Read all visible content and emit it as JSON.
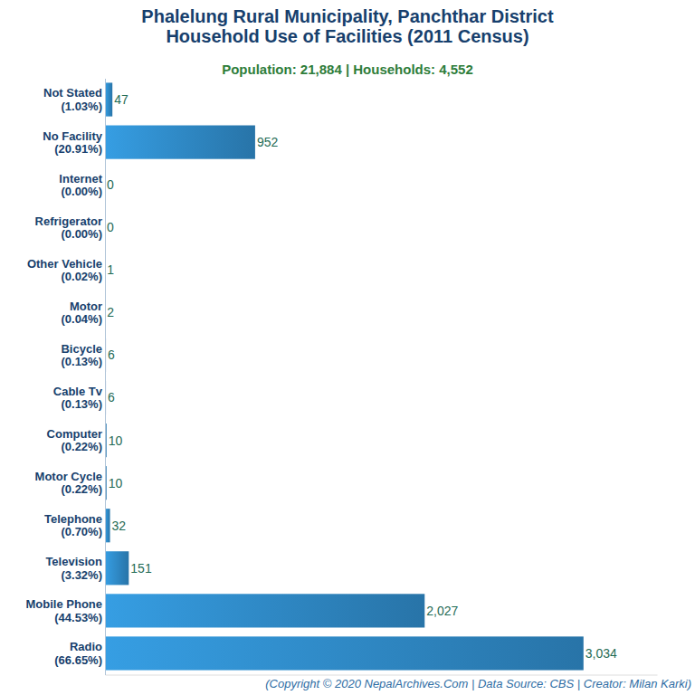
{
  "chart_data": {
    "type": "bar",
    "orientation": "horizontal",
    "title": "Phalelung Rural Municipality, Panchthar District\nHousehold Use of Facilities (2011 Census)",
    "subtitle": "Population: 21,884 | Households: 4,552",
    "annotations": [
      "(Copyright © 2020 NepalArchives.Com | Data Source: CBS | Creator: Milan Karki)"
    ],
    "categories": [
      "Not Stated\n(1.03%)",
      "No Facility\n(20.91%)",
      "Internet\n(0.00%)",
      "Refrigerator\n(0.00%)",
      "Other Vehicle\n(0.02%)",
      "Motor\n(0.04%)",
      "Bicycle\n(0.13%)",
      "Cable Tv\n(0.13%)",
      "Computer\n(0.22%)",
      "Motor Cycle\n(0.22%)",
      "Telephone\n(0.70%)",
      "Television\n(3.32%)",
      "Mobile Phone\n(44.53%)",
      "Radio\n(66.65%)"
    ],
    "values": [
      47,
      952,
      0,
      0,
      1,
      2,
      6,
      6,
      10,
      10,
      32,
      151,
      2027,
      3034
    ],
    "value_labels": [
      "47",
      "952",
      "0",
      "0",
      "1",
      "2",
      "6",
      "6",
      "10",
      "10",
      "32",
      "151",
      "2,027",
      "3,034"
    ],
    "data_labels": true,
    "color": "#3498db",
    "xlim": [
      0,
      3500
    ],
    "xticks": [],
    "tick_labels": "y",
    "grid": false
  }
}
